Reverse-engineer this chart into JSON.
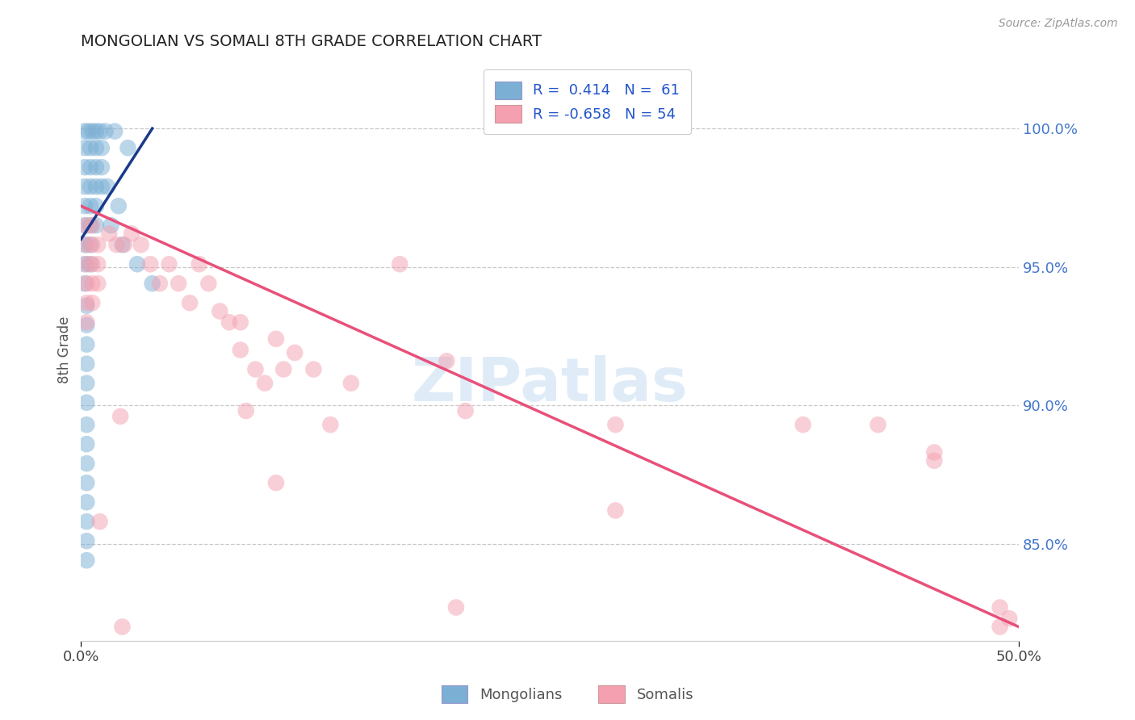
{
  "title": "MONGOLIAN VS SOMALI 8TH GRADE CORRELATION CHART",
  "source": "Source: ZipAtlas.com",
  "ylabel": "8th Grade",
  "ytick_labels": [
    "100.0%",
    "95.0%",
    "90.0%",
    "85.0%"
  ],
  "ytick_values": [
    1.0,
    0.95,
    0.9,
    0.85
  ],
  "xlim": [
    0.0,
    0.5
  ],
  "ylim": [
    0.815,
    1.025
  ],
  "mongolian_color": "#7bafd4",
  "somali_color": "#f4a0b0",
  "trend_mongolian_color": "#1a3a8a",
  "trend_somali_color": "#e8507a",
  "mongolian_points": [
    [
      0.002,
      0.999
    ],
    [
      0.004,
      0.999
    ],
    [
      0.006,
      0.999
    ],
    [
      0.008,
      0.999
    ],
    [
      0.01,
      0.999
    ],
    [
      0.013,
      0.999
    ],
    [
      0.002,
      0.993
    ],
    [
      0.005,
      0.993
    ],
    [
      0.008,
      0.993
    ],
    [
      0.011,
      0.993
    ],
    [
      0.002,
      0.986
    ],
    [
      0.005,
      0.986
    ],
    [
      0.008,
      0.986
    ],
    [
      0.011,
      0.986
    ],
    [
      0.002,
      0.979
    ],
    [
      0.005,
      0.979
    ],
    [
      0.008,
      0.979
    ],
    [
      0.011,
      0.979
    ],
    [
      0.002,
      0.972
    ],
    [
      0.005,
      0.972
    ],
    [
      0.008,
      0.972
    ],
    [
      0.002,
      0.965
    ],
    [
      0.005,
      0.965
    ],
    [
      0.008,
      0.965
    ],
    [
      0.002,
      0.958
    ],
    [
      0.005,
      0.958
    ],
    [
      0.002,
      0.951
    ],
    [
      0.005,
      0.951
    ],
    [
      0.002,
      0.944
    ],
    [
      0.018,
      0.999
    ],
    [
      0.025,
      0.993
    ],
    [
      0.003,
      0.936
    ],
    [
      0.003,
      0.929
    ],
    [
      0.003,
      0.922
    ],
    [
      0.003,
      0.915
    ],
    [
      0.003,
      0.908
    ],
    [
      0.003,
      0.901
    ],
    [
      0.003,
      0.893
    ],
    [
      0.003,
      0.886
    ],
    [
      0.003,
      0.879
    ],
    [
      0.003,
      0.872
    ],
    [
      0.003,
      0.865
    ],
    [
      0.003,
      0.858
    ],
    [
      0.003,
      0.851
    ],
    [
      0.003,
      0.844
    ],
    [
      0.016,
      0.965
    ],
    [
      0.022,
      0.958
    ],
    [
      0.03,
      0.951
    ],
    [
      0.038,
      0.944
    ],
    [
      0.014,
      0.979
    ],
    [
      0.02,
      0.972
    ]
  ],
  "somali_points": [
    [
      0.003,
      0.965
    ],
    [
      0.006,
      0.965
    ],
    [
      0.003,
      0.958
    ],
    [
      0.006,
      0.958
    ],
    [
      0.009,
      0.958
    ],
    [
      0.003,
      0.951
    ],
    [
      0.006,
      0.951
    ],
    [
      0.009,
      0.951
    ],
    [
      0.003,
      0.944
    ],
    [
      0.006,
      0.944
    ],
    [
      0.009,
      0.944
    ],
    [
      0.003,
      0.937
    ],
    [
      0.006,
      0.937
    ],
    [
      0.003,
      0.93
    ],
    [
      0.015,
      0.962
    ],
    [
      0.019,
      0.958
    ],
    [
      0.023,
      0.958
    ],
    [
      0.027,
      0.962
    ],
    [
      0.032,
      0.958
    ],
    [
      0.037,
      0.951
    ],
    [
      0.042,
      0.944
    ],
    [
      0.047,
      0.951
    ],
    [
      0.052,
      0.944
    ],
    [
      0.063,
      0.951
    ],
    [
      0.068,
      0.944
    ],
    [
      0.058,
      0.937
    ],
    [
      0.074,
      0.934
    ],
    [
      0.079,
      0.93
    ],
    [
      0.085,
      0.93
    ],
    [
      0.085,
      0.92
    ],
    [
      0.093,
      0.913
    ],
    [
      0.098,
      0.908
    ],
    [
      0.104,
      0.924
    ],
    [
      0.114,
      0.919
    ],
    [
      0.124,
      0.913
    ],
    [
      0.144,
      0.908
    ],
    [
      0.17,
      0.951
    ],
    [
      0.021,
      0.896
    ],
    [
      0.088,
      0.898
    ],
    [
      0.108,
      0.913
    ],
    [
      0.205,
      0.898
    ],
    [
      0.285,
      0.893
    ],
    [
      0.385,
      0.893
    ],
    [
      0.01,
      0.858
    ],
    [
      0.104,
      0.872
    ],
    [
      0.195,
      0.916
    ],
    [
      0.425,
      0.893
    ],
    [
      0.133,
      0.893
    ],
    [
      0.455,
      0.883
    ],
    [
      0.285,
      0.862
    ],
    [
      0.2,
      0.827
    ],
    [
      0.49,
      0.827
    ],
    [
      0.495,
      0.823
    ],
    [
      0.49,
      0.82
    ],
    [
      0.022,
      0.82
    ],
    [
      0.455,
      0.88
    ]
  ],
  "somali_trend_x": [
    0.0,
    0.5
  ],
  "somali_trend_y": [
    0.972,
    0.82
  ],
  "mongolian_trend_x": [
    0.0,
    0.038
  ],
  "mongolian_trend_y": [
    0.96,
    1.0
  ],
  "grid_color": "#bbbbbb",
  "background_color": "#ffffff"
}
